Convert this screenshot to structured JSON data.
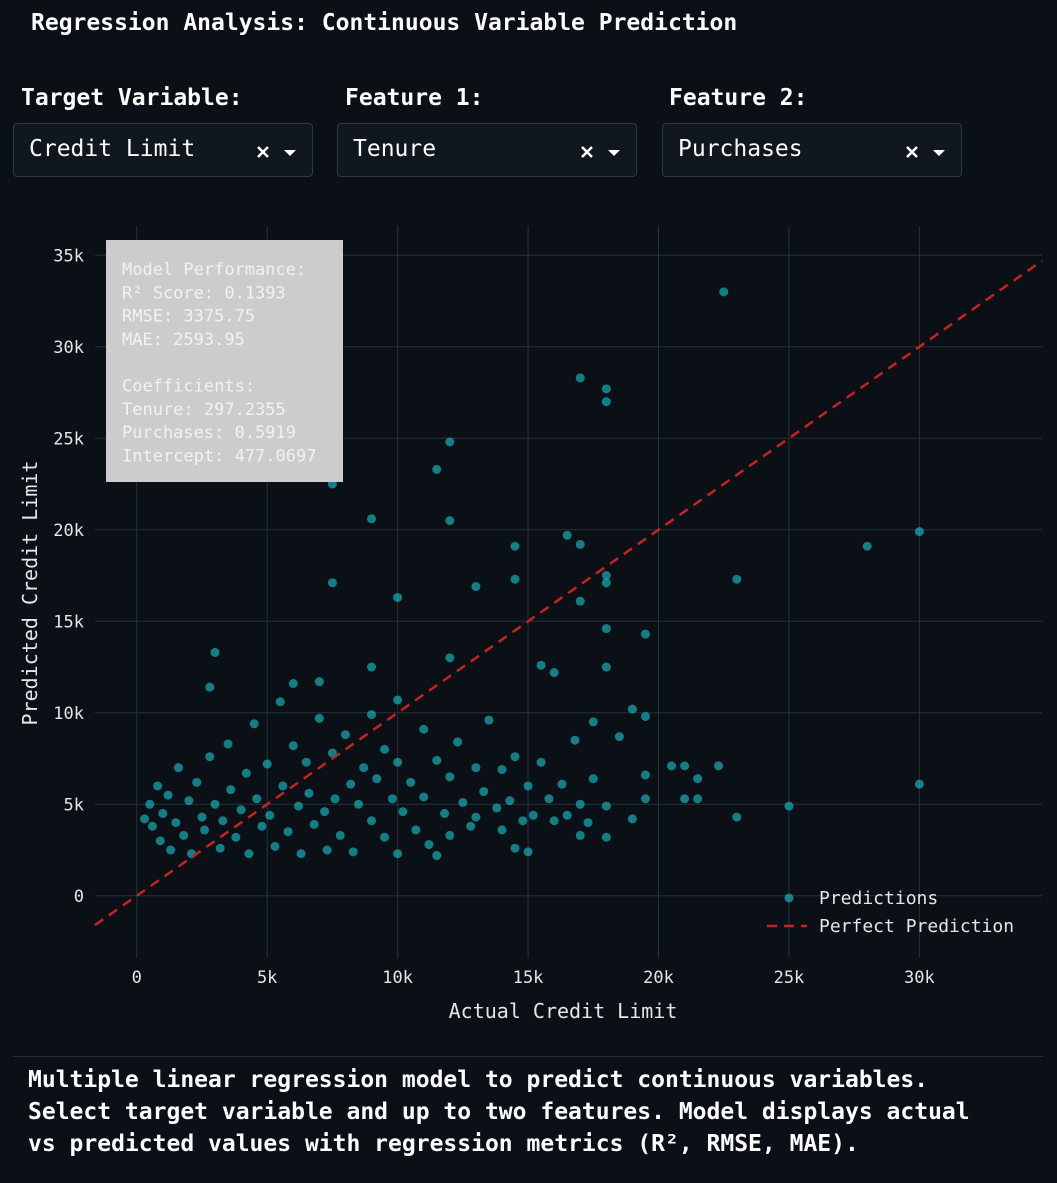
{
  "header": {
    "title": "Regression Analysis: Continuous Variable Prediction"
  },
  "controls": [
    {
      "label": "Target Variable:",
      "value": "Credit Limit"
    },
    {
      "label": "Feature 1:",
      "value": "Tenure"
    },
    {
      "label": "Feature 2:",
      "value": "Purchases"
    }
  ],
  "chart_data": {
    "type": "scatter",
    "x_label": "Actual Credit Limit",
    "y_label": "Predicted Credit Limit",
    "xlim": [
      -1600,
      34700
    ],
    "ylim": [
      -3400,
      36600
    ],
    "xticks": [
      0,
      {
        "value": 5000,
        "label": "5k"
      },
      {
        "value": 10000,
        "label": "10k"
      },
      {
        "value": 15000,
        "label": "15k"
      },
      {
        "value": 20000,
        "label": "20k"
      },
      {
        "value": 25000,
        "label": "25k"
      },
      {
        "value": 30000,
        "label": "30k"
      }
    ],
    "yticks": [
      0,
      {
        "value": 5000,
        "label": "5k"
      },
      {
        "value": 10000,
        "label": "10k"
      },
      {
        "value": 15000,
        "label": "15k"
      },
      {
        "value": 20000,
        "label": "20k"
      },
      {
        "value": 25000,
        "label": "25k"
      },
      {
        "value": 30000,
        "label": "30k"
      },
      {
        "value": 35000,
        "label": "35k"
      }
    ],
    "grid": true,
    "legend": "bottom right",
    "series": [
      {
        "name": "Predictions",
        "color": "#17c9d4",
        "mode": "markers",
        "x": [
          22500,
          17000,
          18000,
          18000,
          12000,
          11500,
          7500,
          9000,
          12000,
          16500,
          17000,
          14500,
          28000,
          30000,
          7500,
          13000,
          14500,
          18000,
          18000,
          23000,
          17000,
          10000,
          18000,
          19500,
          3000,
          12000,
          9000,
          18000,
          2800,
          6000,
          7000,
          15500,
          16000,
          25000,
          30000,
          23000,
          22300,
          21000,
          20500,
          21500,
          21000,
          21500,
          19500,
          19000,
          18500,
          17500,
          19500,
          19500,
          19000,
          18000,
          15000,
          14500,
          11500,
          17000,
          300,
          500,
          600,
          800,
          900,
          1000,
          1200,
          1300,
          1500,
          1600,
          1800,
          2000,
          2100,
          2300,
          2500,
          2600,
          2800,
          3000,
          3200,
          3300,
          3500,
          3600,
          3800,
          4000,
          4200,
          4300,
          4500,
          4600,
          4800,
          5000,
          5100,
          5300,
          5500,
          5600,
          5800,
          6000,
          6200,
          6300,
          6500,
          6600,
          6800,
          7000,
          7200,
          7300,
          7500,
          7600,
          7800,
          8000,
          8200,
          8300,
          8500,
          8700,
          9000,
          9000,
          9200,
          9500,
          9500,
          9800,
          10000,
          10000,
          10000,
          10200,
          10500,
          10700,
          11000,
          11000,
          11200,
          11500,
          11800,
          12000,
          12000,
          12300,
          12500,
          12800,
          13000,
          13000,
          13300,
          13500,
          13800,
          14000,
          14000,
          14300,
          14500,
          14800,
          15000,
          15200,
          15500,
          15800,
          16000,
          16300,
          16500,
          16800,
          17000,
          17300,
          17500,
          18000
        ],
        "values": [
          33000,
          28300,
          27700,
          27000,
          24800,
          23300,
          22500,
          20600,
          20500,
          19700,
          19200,
          19100,
          19100,
          19900,
          17100,
          16900,
          17300,
          17500,
          17100,
          17300,
          16100,
          16300,
          14600,
          14300,
          13300,
          13000,
          12500,
          12500,
          11400,
          11600,
          11700,
          12600,
          12200,
          4900,
          6100,
          4300,
          7100,
          7100,
          7100,
          6400,
          5300,
          5300,
          9800,
          10200,
          8700,
          9500,
          6600,
          5300,
          4200,
          3200,
          2400,
          2600,
          2200,
          3300,
          4200,
          5000,
          3800,
          6000,
          3000,
          4500,
          5500,
          2500,
          4000,
          7000,
          3300,
          5200,
          2300,
          6200,
          4300,
          3600,
          7600,
          5000,
          2600,
          4100,
          8300,
          5800,
          3200,
          4700,
          6700,
          2300,
          9400,
          5300,
          3800,
          7200,
          4400,
          2700,
          10600,
          6000,
          3500,
          8200,
          4900,
          2300,
          7300,
          5600,
          3900,
          9700,
          4600,
          2500,
          7800,
          5300,
          3300,
          8800,
          6100,
          2400,
          5000,
          7000,
          9900,
          4100,
          6400,
          3200,
          8000,
          5300,
          10700,
          7300,
          2300,
          4600,
          6200,
          3600,
          9100,
          5400,
          2800,
          7400,
          4500,
          6500,
          3300,
          8400,
          5100,
          3800,
          7000,
          4300,
          5700,
          9600,
          4800,
          6900,
          3600,
          5200,
          7600,
          4100,
          6000,
          4400,
          7300,
          5300,
          4100,
          6100,
          4400,
          8500,
          5000,
          4000,
          6400,
          4900
        ]
      },
      {
        "name": "Perfect Prediction",
        "color": "#c62222",
        "mode": "dashed-line",
        "x": [
          -1600,
          34700
        ],
        "values": [
          -1600,
          34700
        ]
      }
    ],
    "annotation": {
      "performance": [
        "Model Performance:",
        "R² Score: 0.1393",
        "RMSE: 3375.75",
        "MAE: 2593.95"
      ],
      "coefficients": [
        "Coefficients:",
        "Tenure: 297.2355",
        "Purchases: 0.5919",
        "Intercept: 477.0697"
      ]
    }
  },
  "footer": {
    "lines": [
      "Multiple linear regression model to predict continuous variables.",
      "Select target variable and up to two features. Model displays actual",
      "vs predicted values with regression metrics (R², RMSE, MAE)."
    ]
  }
}
